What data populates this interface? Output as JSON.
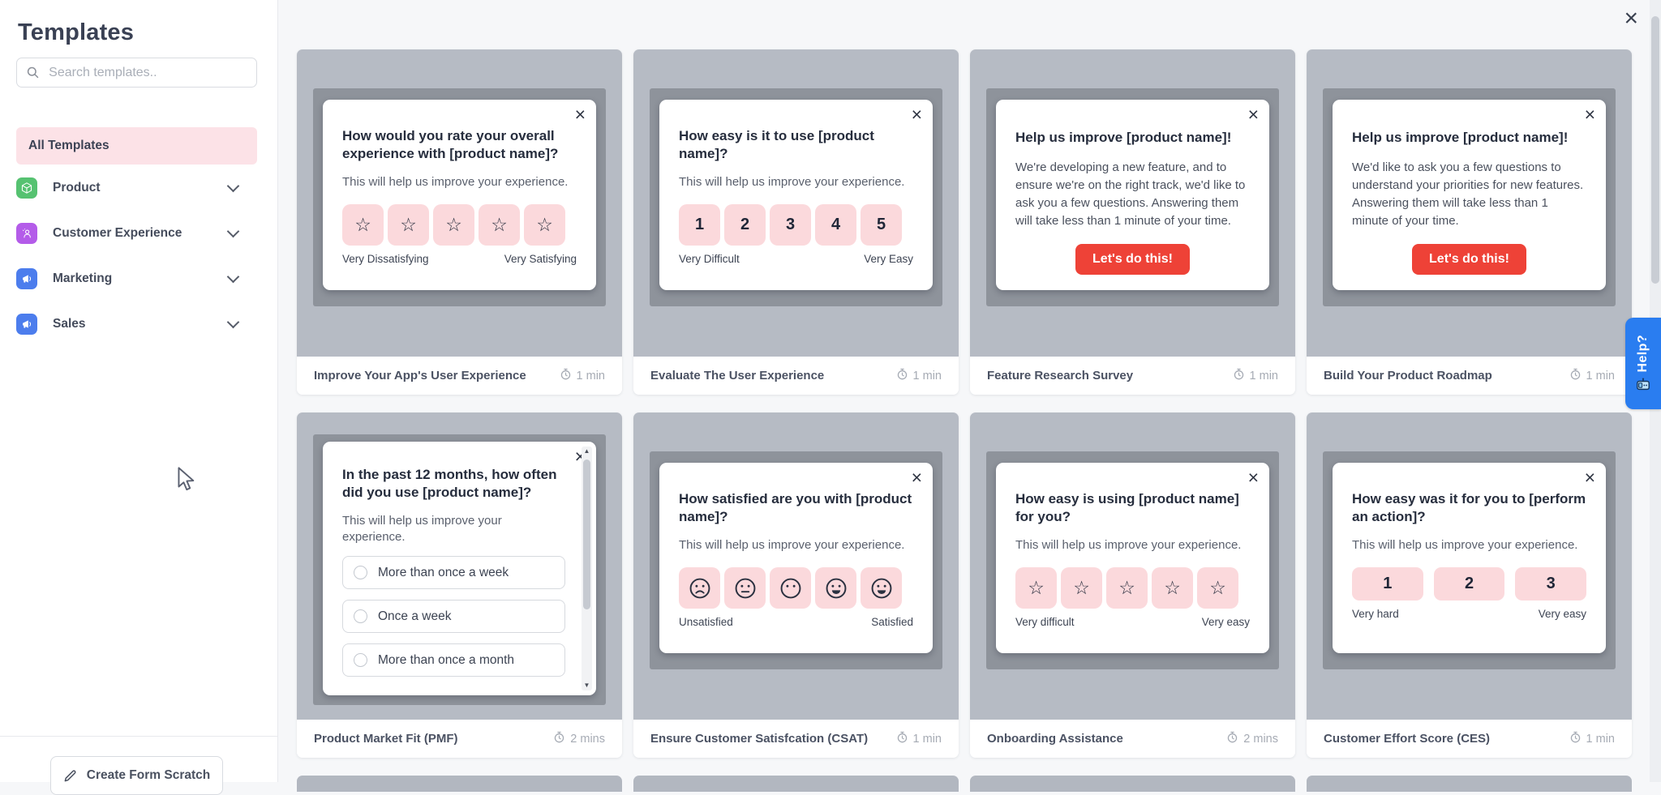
{
  "sidebar": {
    "title": "Templates",
    "search": {
      "placeholder": "Search templates.."
    },
    "all_templates_label": "All Templates",
    "categories": [
      {
        "label": "Product",
        "icon": "cube-icon",
        "color": "#56c271"
      },
      {
        "label": "Customer Experience",
        "icon": "user-sparkle-icon",
        "color": "#b45ce9"
      },
      {
        "label": "Marketing",
        "icon": "megaphone-icon",
        "color": "#4c7ded"
      },
      {
        "label": "Sales",
        "icon": "megaphone-icon",
        "color": "#4c7ded"
      }
    ],
    "create_button_label": "Create Form Scratch"
  },
  "page": {
    "close_glyph": "×"
  },
  "help_tab": {
    "label": "Help?"
  },
  "glyphs": {
    "star": "☆",
    "close": "×",
    "arrow_up": "▲",
    "arrow_down": "▼"
  },
  "colors": {
    "highlight_pink": "#fce2e7",
    "option_pink": "#fbd9dc",
    "danger_red": "#ee4237",
    "help_blue": "#2a7df0",
    "preview_gray": "#b6bbc4",
    "site_gray": "#8e939b"
  },
  "cards": [
    {
      "title": "Improve Your App's User Experience",
      "time": "1 min",
      "widget": {
        "type": "stars",
        "question": "How would you rate your overall experience with [product name]?",
        "subtitle": "This will help us improve your experience.",
        "count": 5,
        "left_label": "Very Dissatisfying",
        "right_label": "Very Satisfying"
      }
    },
    {
      "title": "Evaluate The User Experience",
      "time": "1 min",
      "widget": {
        "type": "numbers",
        "question": "How easy is it to use [product name]?",
        "subtitle": "This will help us improve your experience.",
        "options": [
          "1",
          "2",
          "3",
          "4",
          "5"
        ],
        "left_label": "Very Difficult",
        "right_label": "Very Easy"
      }
    },
    {
      "title": "Feature Research Survey",
      "time": "1 min",
      "widget": {
        "type": "announcement",
        "question": "Help us improve [product name]!",
        "body": "We're developing a new feature, and to ensure we're on the right track, we'd like to ask you a few questions. Answering them will take less than 1 minute of your time.",
        "button_label": "Let's do this!"
      }
    },
    {
      "title": "Build Your Product Roadmap",
      "time": "1 min",
      "widget": {
        "type": "announcement",
        "question": "Help us improve [product name]!",
        "body": "We'd like to ask you a few questions to understand your priorities for new features. Answering them will take less than 1 minute of your time.",
        "button_label": "Let's do this!"
      }
    },
    {
      "title": "Product Market Fit (PMF)",
      "time": "2 mins",
      "widget": {
        "type": "radio-list",
        "question": "In the past 12 months, how often did you use [product name]?",
        "subtitle": "This will help us improve your experience.",
        "options": [
          "More than once a week",
          "Once a week",
          "More than once a month"
        ]
      }
    },
    {
      "title": "Ensure Customer Satisfcation (CSAT)",
      "time": "1 min",
      "widget": {
        "type": "faces",
        "question": "How satisfied are you with [product name]?",
        "subtitle": "This will help us improve your experience.",
        "faces": [
          "sad",
          "flat",
          "neutral",
          "happy",
          "happy"
        ],
        "left_label": "Unsatisfied",
        "right_label": "Satisfied"
      }
    },
    {
      "title": "Onboarding Assistance",
      "time": "2 mins",
      "widget": {
        "type": "stars",
        "question": "How easy is using [product name] for you?",
        "subtitle": "This will help us improve your experience.",
        "count": 5,
        "left_label": "Very difficult",
        "right_label": "Very easy"
      }
    },
    {
      "title": "Customer Effort Score (CES)",
      "time": "1 min",
      "widget": {
        "type": "numbers-wide",
        "question": "How easy was it for you to [perform an action]?",
        "subtitle": "This will help us improve your experience.",
        "options": [
          "1",
          "2",
          "3"
        ],
        "left_label": "Very hard",
        "right_label": "Very easy"
      }
    }
  ]
}
